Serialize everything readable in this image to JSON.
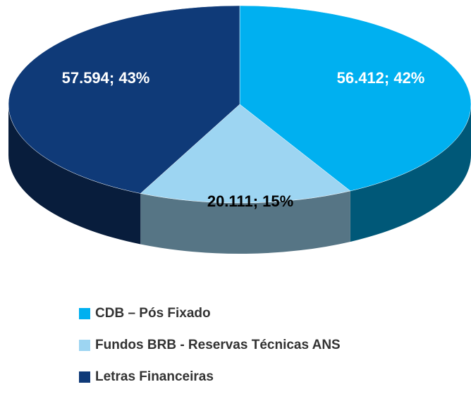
{
  "chart_data": {
    "type": "pie",
    "categories": [
      "CDB – Pós Fixado",
      "Fundos BRB - Reservas Técnicas ANS",
      "Letras Financeiras"
    ],
    "values": [
      56412,
      20111,
      57594
    ],
    "value_labels": [
      "56.412; 42%",
      "20.111; 15%",
      "57.594; 43%"
    ],
    "colors": [
      "#00b0f0",
      "#9dd5f2",
      "#0f3a78"
    ],
    "legend": "bottom"
  }
}
